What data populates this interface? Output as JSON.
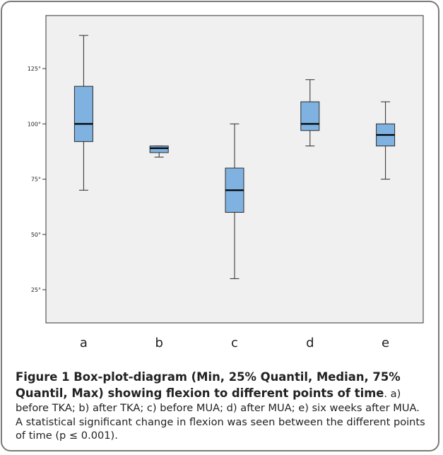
{
  "chart_data": {
    "type": "box",
    "categories": [
      "a",
      "b",
      "c",
      "d",
      "e"
    ],
    "boxes": [
      {
        "category": "a",
        "min": 70,
        "q1": 92,
        "median": 100,
        "q3": 117,
        "max": 140
      },
      {
        "category": "b",
        "min": 85,
        "q1": 87,
        "median": 89,
        "q3": 90,
        "max": 90
      },
      {
        "category": "c",
        "min": 30,
        "q1": 60,
        "median": 70,
        "q3": 80,
        "max": 100
      },
      {
        "category": "d",
        "min": 90,
        "q1": 97,
        "median": 100,
        "q3": 110,
        "max": 120
      },
      {
        "category": "e",
        "min": 75,
        "q1": 90,
        "median": 95,
        "q3": 100,
        "max": 110
      }
    ],
    "yticks": [
      25,
      50,
      75,
      100,
      125
    ],
    "ytick_labels": [
      "25°",
      "50°",
      "75°",
      "100°",
      "125°"
    ],
    "ylim": [
      10,
      149
    ],
    "grid": false,
    "box_color": "#7fb2e0",
    "box_edge_color": "#2b2b2b"
  },
  "caption": {
    "bold": "Figure 1 Box-plot-diagram (Min, 25% Quantil, Median, 75% Quantil, Max) showing flexion to different points of time",
    "body": ". a) before TKA; b) after TKA; c) before MUA; d) after MUA; e) six weeks after MUA. A statistical significant change in flexion was seen between the different points of time (p ≤ 0.001)."
  }
}
